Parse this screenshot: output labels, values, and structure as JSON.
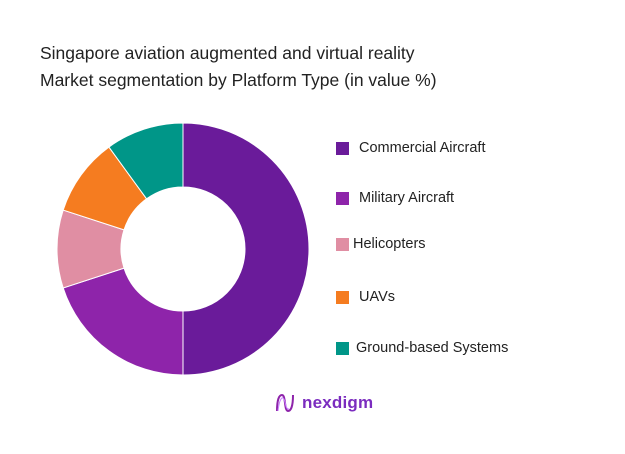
{
  "chart_data": {
    "type": "pie",
    "title": "Singapore aviation augmented and virtual reality Market segmentation by Platform Type (in value %)",
    "title_lines": [
      "Singapore aviation augmented and virtual reality",
      "Market segmentation by Platform Type (in value %)"
    ],
    "donut": true,
    "legend_position": "right",
    "categories": [
      "Commercial Aircraft",
      "Military Aircraft",
      "Helicopters",
      "UAVs",
      "Ground-based Systems"
    ],
    "values": [
      50,
      20,
      10,
      10,
      10
    ],
    "colors": [
      "#6a1b9a",
      "#8e24aa",
      "#e08ea3",
      "#f57c20",
      "#009688"
    ]
  },
  "brand": {
    "name": "nexdigm",
    "color": "#7b2cbf"
  }
}
